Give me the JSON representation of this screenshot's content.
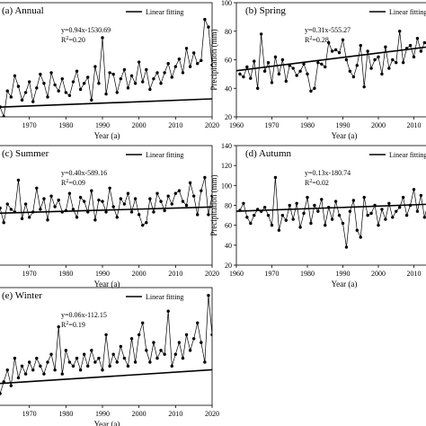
{
  "chart_data": [
    {
      "type": "line",
      "panel_label": "(a) Annual",
      "xlabel": "Year (a)",
      "ylabel": "",
      "xlim": [
        1960,
        2020
      ],
      "ylim": [
        250,
        1000
      ],
      "x_ticks": [
        "1970",
        "1980",
        "1990",
        "2000",
        "2010",
        "2020"
      ],
      "y_ticks": [],
      "equation": "y=0.94x-1530.69",
      "r2": "R2=0.20",
      "legend": "Linear fitting",
      "trend": {
        "slope": 0.94,
        "intercept": -1530.69
      },
      "series": [
        {
          "x": [
            1961,
            1962,
            1963,
            1964,
            1965,
            1966,
            1967,
            1968,
            1969,
            1970,
            1971,
            1972,
            1973,
            1974,
            1975,
            1976,
            1977,
            1978,
            1979,
            1980,
            1981,
            1982,
            1983,
            1984,
            1985,
            1986,
            1987,
            1988,
            1989,
            1990,
            1991,
            1992,
            1993,
            1994,
            1995,
            1996,
            1997,
            1998,
            1999,
            2000,
            2001,
            2002,
            2003,
            2004,
            2005,
            2006,
            2007,
            2008,
            2009,
            2010,
            2011,
            2012,
            2013,
            2014,
            2015,
            2016,
            2017,
            2018,
            2019,
            2020
          ],
          "y": [
            280,
            315,
            250,
            420,
            380,
            520,
            450,
            360,
            410,
            480,
            350,
            440,
            530,
            470,
            380,
            540,
            460,
            420,
            500,
            410,
            390,
            480,
            550,
            430,
            470,
            510,
            360,
            580,
            470,
            770,
            400,
            540,
            530,
            410,
            500,
            560,
            440,
            520,
            470,
            610,
            480,
            560,
            430,
            500,
            540,
            470,
            540,
            600,
            510,
            580,
            630,
            540,
            700,
            580,
            670,
            600,
            620,
            890,
            840,
            590
          ]
        }
      ]
    },
    {
      "type": "line",
      "panel_label": "(b) Spring",
      "xlabel": "Year (a)",
      "ylabel": "Precipitation (mm)",
      "xlim": [
        1960,
        2020
      ],
      "ylim": [
        20,
        100
      ],
      "x_ticks": [
        "1960",
        "1970",
        "1980",
        "1990",
        "2000",
        "2010"
      ],
      "y_ticks": [
        "20",
        "40",
        "60",
        "80",
        "100"
      ],
      "equation": "y=0.31x-555.27",
      "r2": "R2=0.28",
      "legend": "Linear fitting",
      "trend": {
        "slope": 0.31,
        "intercept": -555.27
      },
      "series": [
        {
          "x": [
            1961,
            1962,
            1963,
            1964,
            1965,
            1966,
            1967,
            1968,
            1969,
            1970,
            1971,
            1972,
            1973,
            1974,
            1975,
            1976,
            1977,
            1978,
            1979,
            1980,
            1981,
            1982,
            1983,
            1984,
            1985,
            1986,
            1987,
            1988,
            1989,
            1990,
            1991,
            1992,
            1993,
            1994,
            1995,
            1996,
            1997,
            1998,
            1999,
            2000,
            2001,
            2002,
            2003,
            2004,
            2005,
            2006,
            2007,
            2008,
            2009,
            2010,
            2011,
            2012,
            2013,
            2014,
            2015
          ],
          "y": [
            50,
            48,
            55,
            47,
            59,
            40,
            78,
            52,
            58,
            44,
            62,
            50,
            60,
            45,
            56,
            54,
            49,
            52,
            57,
            50,
            38,
            40,
            58,
            57,
            55,
            72,
            66,
            67,
            65,
            74,
            60,
            52,
            48,
            56,
            70,
            41,
            66,
            54,
            60,
            62,
            50,
            69,
            54,
            60,
            58,
            80,
            58,
            68,
            70,
            62,
            75,
            66,
            72,
            70,
            75
          ]
        }
      ]
    },
    {
      "type": "line",
      "panel_label": "(c) Summer",
      "xlabel": "Year (a)",
      "ylabel": "",
      "xlim": [
        1960,
        2020
      ],
      "ylim": [
        0,
        450
      ],
      "x_ticks": [
        "1970",
        "1980",
        "1990",
        "2000",
        "2010",
        "2020"
      ],
      "y_ticks": [],
      "equation": "y=0.40x-589.16",
      "r2": "R2=0.09",
      "legend": "Linear fitting",
      "trend": {
        "slope": 0.4,
        "intercept": -589.16
      },
      "series": [
        {
          "x": [
            1961,
            1962,
            1963,
            1964,
            1965,
            1966,
            1967,
            1968,
            1969,
            1970,
            1971,
            1972,
            1973,
            1974,
            1975,
            1976,
            1977,
            1978,
            1979,
            1980,
            1981,
            1982,
            1983,
            1984,
            1985,
            1986,
            1987,
            1988,
            1989,
            1990,
            1991,
            1992,
            1993,
            1994,
            1995,
            1996,
            1997,
            1998,
            1999,
            2000,
            2001,
            2002,
            2003,
            2004,
            2005,
            2006,
            2007,
            2008,
            2009,
            2010,
            2011,
            2012,
            2013,
            2014,
            2015,
            2016,
            2017,
            2018,
            2019,
            2020
          ],
          "y": [
            180,
            215,
            160,
            230,
            210,
            200,
            320,
            175,
            230,
            180,
            200,
            290,
            210,
            250,
            170,
            260,
            220,
            245,
            200,
            205,
            270,
            210,
            180,
            255,
            240,
            200,
            280,
            170,
            245,
            240,
            200,
            290,
            220,
            180,
            250,
            230,
            270,
            200,
            250,
            190,
            150,
            160,
            250,
            200,
            270,
            240,
            205,
            260,
            230,
            270,
            280,
            240,
            225,
            310,
            260,
            190,
            280,
            330,
            190,
            260
          ]
        }
      ]
    },
    {
      "type": "line",
      "panel_label": "(d) Autumn",
      "xlabel": "Year (a)",
      "ylabel": "Precipitation (mm)",
      "xlim": [
        1960,
        2020
      ],
      "ylim": [
        20,
        140
      ],
      "x_ticks": [
        "1960",
        "1970",
        "1980",
        "1990",
        "2000",
        "2010"
      ],
      "y_ticks": [
        "20",
        "40",
        "60",
        "80",
        "100",
        "120",
        "140"
      ],
      "equation": "y=0.13x-180.74",
      "r2": "R2=0.02",
      "legend": "Linear fitting",
      "trend": {
        "slope": 0.13,
        "intercept": -180.74
      },
      "series": [
        {
          "x": [
            1961,
            1962,
            1963,
            1964,
            1965,
            1966,
            1967,
            1968,
            1969,
            1970,
            1971,
            1972,
            1973,
            1974,
            1975,
            1976,
            1977,
            1978,
            1979,
            1980,
            1981,
            1982,
            1983,
            1984,
            1985,
            1986,
            1987,
            1988,
            1989,
            1990,
            1991,
            1992,
            1993,
            1994,
            1995,
            1996,
            1997,
            1998,
            1999,
            2000,
            2001,
            2002,
            2003,
            2004,
            2005,
            2006,
            2007,
            2008,
            2009,
            2010,
            2011,
            2012,
            2013,
            2014,
            2015
          ],
          "y": [
            75,
            82,
            68,
            62,
            70,
            76,
            74,
            78,
            70,
            60,
            108,
            55,
            70,
            65,
            80,
            66,
            82,
            58,
            72,
            88,
            62,
            80,
            74,
            86,
            60,
            78,
            66,
            84,
            70,
            62,
            38,
            74,
            85,
            55,
            48,
            88,
            70,
            72,
            80,
            60,
            76,
            66,
            82,
            68,
            74,
            78,
            88,
            70,
            80,
            96,
            74,
            90,
            68,
            82,
            76
          ]
        }
      ]
    },
    {
      "type": "line",
      "panel_label": "(e) Winter",
      "xlabel": "Year (a)",
      "ylabel": "",
      "xlim": [
        1960,
        2020
      ],
      "ylim": [
        0,
        30
      ],
      "x_ticks": [
        "1970",
        "1980",
        "1990",
        "2000",
        "2010",
        "2020"
      ],
      "y_ticks": [],
      "equation": "y=0.06x-112.15",
      "r2": "R2=0.19",
      "legend": "Linear fitting",
      "trend": {
        "slope": 0.06,
        "intercept": -112.15
      },
      "series": [
        {
          "x": [
            1961,
            1962,
            1963,
            1964,
            1965,
            1966,
            1967,
            1968,
            1969,
            1970,
            1971,
            1972,
            1973,
            1974,
            1975,
            1976,
            1977,
            1978,
            1979,
            1980,
            1981,
            1982,
            1983,
            1984,
            1985,
            1986,
            1987,
            1988,
            1989,
            1990,
            1991,
            1992,
            1993,
            1994,
            1995,
            1996,
            1997,
            1998,
            1999,
            2000,
            2001,
            2002,
            2003,
            2004,
            2005,
            2006,
            2007,
            2008,
            2009,
            2010,
            2011,
            2012,
            2013,
            2014,
            2015,
            2016,
            2017,
            2018,
            2019,
            2020
          ],
          "y": [
            7,
            3,
            6,
            9,
            5,
            12,
            7,
            10,
            8,
            11,
            9,
            12,
            10,
            8,
            11,
            13,
            9,
            20,
            8,
            14,
            11,
            10,
            12,
            9,
            13,
            10,
            14,
            11,
            12,
            9,
            18,
            10,
            13,
            11,
            15,
            12,
            10,
            17,
            11,
            18,
            21,
            14,
            11,
            16,
            12,
            14,
            13,
            24,
            10,
            13,
            16,
            12,
            18,
            14,
            17,
            21,
            16,
            11,
            28,
            18
          ]
        }
      ]
    }
  ]
}
